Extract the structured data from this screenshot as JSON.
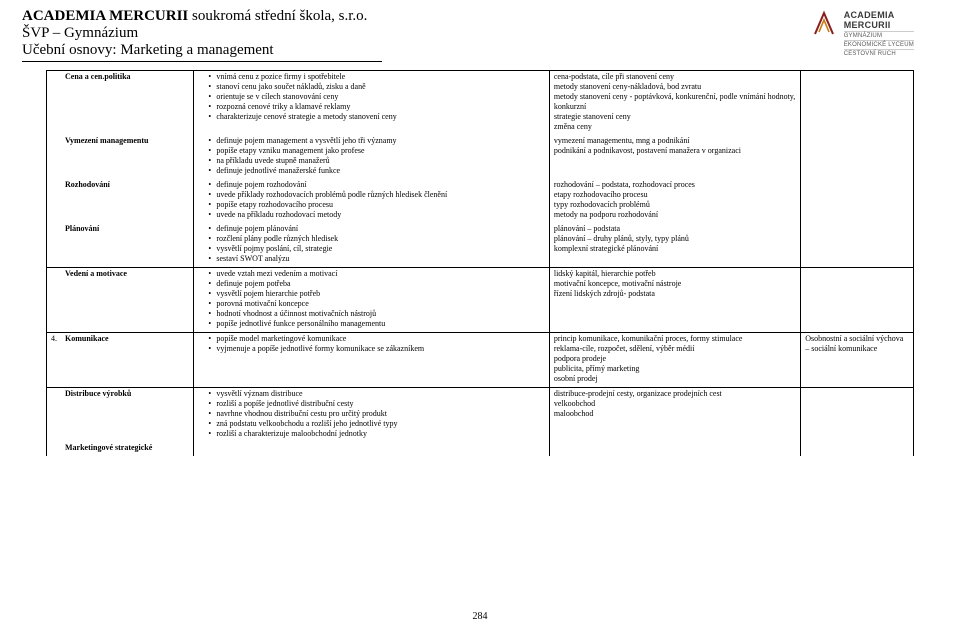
{
  "header": {
    "school_name": "ACADEMIA MERCURII",
    "school_suffix": "  soukromá střední škola, s.r.o.",
    "line2": "ŠVP – Gymnázium",
    "line3": "Učební osnovy: Marketing a management"
  },
  "logo": {
    "title": "ACADEMIA",
    "title2": "MERCURII",
    "sub1": "GYMNÁZIUM",
    "sub2": "EKONOMICKÉ LYCEUM",
    "sub3": "CESTOVNÍ RUCH"
  },
  "rows": [
    {
      "num": "",
      "label": "Cena a cen.politika",
      "bold": true,
      "col2": [
        "vnímá cenu z pozice firmy i spotřebitele",
        "stanoví cenu jako součet nákladů, zisku a daně",
        "orientuje se v cílech stanovování ceny",
        "rozpozná cenové triky a klamavé reklamy",
        "charakterizuje cenové strategie a metody stanovení ceny"
      ],
      "col3": [
        "cena-podstata, cíle při stanovení ceny",
        "metody stanovení ceny-nákladová, bod zvratu",
        "metody stanovení ceny - poptávková, konkurenční, podle vnímání hodnoty, konkurzní",
        "strategie stanovení ceny",
        "změna ceny"
      ],
      "col4": ""
    },
    {
      "num": "",
      "label": "Vymezení managementu",
      "bold": true,
      "col2": [
        "definuje pojem management a vysvětlí jeho tři významy",
        "popíše etapy vzniku management jako profese",
        "na příkladu uvede stupně manažerů",
        "definuje jednotlivé manažerské funkce"
      ],
      "col3": [
        "vymezení managementu, mng a podnikání",
        "podnikání a podnikavost, postavení manažera v organizaci"
      ],
      "col4": ""
    },
    {
      "num": "",
      "label": "Rozhodování",
      "bold": true,
      "col2": [
        "definuje pojem rozhodování",
        "uvede příklady rozhodovacích problémů podle různých hledisek členění",
        "popíše etapy rozhodovacího procesu",
        "uvede na příkladu rozhodovací metody"
      ],
      "col3": [
        "rozhodování – podstata, rozhodovací proces",
        "etapy rozhodovacího procesu",
        "typy rozhodovacích problémů",
        "metody na podporu rozhodování"
      ],
      "col4": ""
    },
    {
      "num": "",
      "label": "Plánování",
      "bold": true,
      "col2": [
        "definuje pojem plánování",
        "rozčlení plány podle různých hledisek",
        "vysvětlí pojmy poslání, cíl, strategie",
        "sestaví SWOT analýzu"
      ],
      "col3": [
        "plánování – podstata",
        "plánování – druhy plánů, styly, typy plánů",
        "komplexní strategické plánování"
      ],
      "col4": ""
    },
    {
      "num": "",
      "label": "Vedení a motivace",
      "bold": true,
      "col2": [
        "uvede vztah mezi vedením a motivací",
        "definuje pojem potřeba",
        "vysvětlí pojem hierarchie potřeb",
        "porovná motivační koncepce",
        "hodnotí vhodnost a účinnost motivačních nástrojů",
        "popíše jednotlivé funkce personálního managementu"
      ],
      "col3": [
        "lidský kapitál, hierarchie potřeb",
        "motivační koncepce, motivační nástroje",
        "řízení lidských zdrojů- podstata"
      ],
      "col4": ""
    },
    {
      "num": "4.",
      "label": "Komunikace",
      "bold": true,
      "col2": [
        "popíše model marketingové komunikace",
        "vyjmenuje a popíše jednotlivé formy komunikace se zákazníkem"
      ],
      "col3": [
        "princip komunikace, komunikační proces, formy stimulace",
        "reklama-cíle, rozpočet, sdělení, výběr médií",
        "podpora prodeje",
        "publicita, přímý marketing",
        "osobní prodej"
      ],
      "col4": "Osobnostní a sociální výchova – sociální komunikace"
    },
    {
      "num": "",
      "label": "Distribuce výrobků",
      "bold": true,
      "col2": [
        "vysvětlí význam distribuce",
        "rozliší a popíše jednotlivé distribuční cesty",
        "navrhne vhodnou distribuční cestu pro určitý produkt",
        "zná podstatu velkoobchodu a rozliší jeho jednotlivé typy",
        "rozliší a charakterizuje maloobchodní jednotky"
      ],
      "col3": [
        "distribuce-prodejní cesty, organizace prodejních cest",
        "velkoobchod",
        "maloobchod"
      ],
      "col4": ""
    },
    {
      "num": "",
      "label": "Marketingové strategické",
      "bold": true,
      "col2": [],
      "col3_plain": "",
      "col4": "",
      "lastOpen": true
    }
  ],
  "pageNumber": "284"
}
